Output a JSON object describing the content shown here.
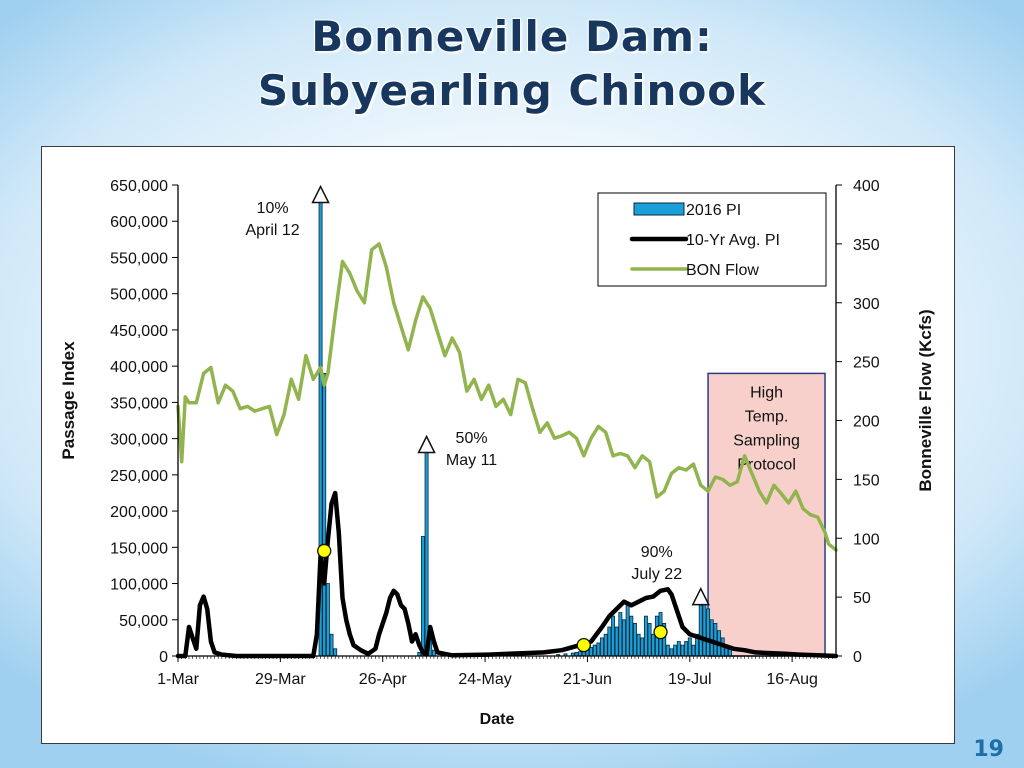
{
  "title": {
    "line1": "Bonneville Dam:",
    "line2": "Subyearling Chinook"
  },
  "page_number": "19",
  "colors": {
    "bars": "#1a9fd9",
    "avg": "#000000",
    "flow": "#92b44e",
    "shade": "#f7d0cc",
    "shade_border": "#2c3b86",
    "marker": "#ffff00",
    "title": "#17375e"
  },
  "chart_data": {
    "type": "bar+line",
    "xlabel": "Date",
    "ylabel": "Passage Index",
    "y2label": "Bonneville  Flow (Kcfs)",
    "xlim": [
      0,
      180
    ],
    "ylim": [
      0,
      650000
    ],
    "y2lim": [
      0,
      400
    ],
    "x_ticks": [
      {
        "label": "1-Mar",
        "day": 0
      },
      {
        "label": "29-Mar",
        "day": 28
      },
      {
        "label": "26-Apr",
        "day": 56
      },
      {
        "label": "24-May",
        "day": 84
      },
      {
        "label": "21-Jun",
        "day": 112
      },
      {
        "label": "19-Jul",
        "day": 140
      },
      {
        "label": "16-Aug",
        "day": 168
      }
    ],
    "y_ticks": [
      "0",
      "50,000",
      "100,000",
      "150,000",
      "200,000",
      "250,000",
      "300,000",
      "350,000",
      "400,000",
      "450,000",
      "500,000",
      "550,000",
      "600,000",
      "650,000"
    ],
    "y_tick_values": [
      0,
      50000,
      100000,
      150000,
      200000,
      250000,
      300000,
      350000,
      400000,
      450000,
      500000,
      550000,
      600000,
      650000
    ],
    "y2_ticks": [
      "0",
      "50",
      "100",
      "150",
      "200",
      "250",
      "300",
      "350",
      "400"
    ],
    "y2_tick_values": [
      0,
      50,
      100,
      150,
      200,
      250,
      300,
      350,
      400
    ],
    "legend": [
      {
        "label": "2016 PI",
        "kind": "bar"
      },
      {
        "label": "10-Yr Avg. PI",
        "kind": "avg"
      },
      {
        "label": "BON Flow",
        "kind": "flow"
      }
    ],
    "series": [
      {
        "name": "2016 PI",
        "kind": "bar",
        "points": [
          {
            "day": 39,
            "value": 630000
          },
          {
            "day": 40,
            "value": 390000
          },
          {
            "day": 41,
            "value": 100000
          },
          {
            "day": 42,
            "value": 30000
          },
          {
            "day": 43,
            "value": 10000
          },
          {
            "day": 66,
            "value": 5000
          },
          {
            "day": 67,
            "value": 165000
          },
          {
            "day": 68,
            "value": 285000
          },
          {
            "day": 69,
            "value": 40000
          },
          {
            "day": 70,
            "value": 8000
          },
          {
            "day": 104,
            "value": 2000
          },
          {
            "day": 106,
            "value": 3000
          },
          {
            "day": 108,
            "value": 4000
          },
          {
            "day": 109,
            "value": 5000
          },
          {
            "day": 110,
            "value": 6000
          },
          {
            "day": 111,
            "value": 8000
          },
          {
            "day": 112,
            "value": 10000
          },
          {
            "day": 113,
            "value": 12000
          },
          {
            "day": 114,
            "value": 15000
          },
          {
            "day": 115,
            "value": 18000
          },
          {
            "day": 116,
            "value": 25000
          },
          {
            "day": 117,
            "value": 30000
          },
          {
            "day": 118,
            "value": 40000
          },
          {
            "day": 119,
            "value": 55000
          },
          {
            "day": 120,
            "value": 40000
          },
          {
            "day": 121,
            "value": 60000
          },
          {
            "day": 122,
            "value": 50000
          },
          {
            "day": 123,
            "value": 70000
          },
          {
            "day": 124,
            "value": 55000
          },
          {
            "day": 125,
            "value": 45000
          },
          {
            "day": 126,
            "value": 30000
          },
          {
            "day": 127,
            "value": 25000
          },
          {
            "day": 128,
            "value": 55000
          },
          {
            "day": 129,
            "value": 45000
          },
          {
            "day": 130,
            "value": 30000
          },
          {
            "day": 131,
            "value": 55000
          },
          {
            "day": 132,
            "value": 60000
          },
          {
            "day": 133,
            "value": 45000
          },
          {
            "day": 134,
            "value": 15000
          },
          {
            "day": 135,
            "value": 10000
          },
          {
            "day": 136,
            "value": 15000
          },
          {
            "day": 137,
            "value": 20000
          },
          {
            "day": 138,
            "value": 15000
          },
          {
            "day": 139,
            "value": 20000
          },
          {
            "day": 140,
            "value": 25000
          },
          {
            "day": 141,
            "value": 15000
          },
          {
            "day": 142,
            "value": 30000
          },
          {
            "day": 143,
            "value": 70000
          },
          {
            "day": 144,
            "value": 75000
          },
          {
            "day": 145,
            "value": 65000
          },
          {
            "day": 146,
            "value": 50000
          },
          {
            "day": 147,
            "value": 45000
          },
          {
            "day": 148,
            "value": 35000
          },
          {
            "day": 149,
            "value": 25000
          },
          {
            "day": 150,
            "value": 15000
          },
          {
            "day": 151,
            "value": 10000
          }
        ]
      },
      {
        "name": "10-Yr Avg. PI",
        "kind": "line",
        "points": [
          [
            0,
            0
          ],
          [
            2,
            0
          ],
          [
            3,
            40000
          ],
          [
            4,
            25000
          ],
          [
            5,
            10000
          ],
          [
            6,
            70000
          ],
          [
            7,
            82000
          ],
          [
            8,
            65000
          ],
          [
            9,
            20000
          ],
          [
            10,
            5000
          ],
          [
            12,
            2000
          ],
          [
            16,
            0
          ],
          [
            30,
            0
          ],
          [
            37,
            0
          ],
          [
            38,
            30000
          ],
          [
            39,
            140000
          ],
          [
            40,
            100000
          ],
          [
            41,
            160000
          ],
          [
            42,
            210000
          ],
          [
            43,
            225000
          ],
          [
            44,
            170000
          ],
          [
            45,
            80000
          ],
          [
            46,
            50000
          ],
          [
            47,
            30000
          ],
          [
            48,
            15000
          ],
          [
            50,
            8000
          ],
          [
            52,
            3000
          ],
          [
            54,
            10000
          ],
          [
            55,
            30000
          ],
          [
            57,
            60000
          ],
          [
            58,
            80000
          ],
          [
            59,
            90000
          ],
          [
            60,
            85000
          ],
          [
            61,
            70000
          ],
          [
            62,
            65000
          ],
          [
            63,
            45000
          ],
          [
            64,
            20000
          ],
          [
            65,
            30000
          ],
          [
            66,
            15000
          ],
          [
            67,
            5000
          ],
          [
            68,
            2000
          ],
          [
            69,
            40000
          ],
          [
            70,
            20000
          ],
          [
            71,
            5000
          ],
          [
            75,
            1000
          ],
          [
            85,
            2000
          ],
          [
            95,
            4000
          ],
          [
            100,
            5000
          ],
          [
            105,
            8000
          ],
          [
            110,
            15000
          ],
          [
            113,
            20000
          ],
          [
            116,
            40000
          ],
          [
            118,
            55000
          ],
          [
            120,
            65000
          ],
          [
            122,
            75000
          ],
          [
            124,
            70000
          ],
          [
            126,
            75000
          ],
          [
            128,
            80000
          ],
          [
            130,
            82000
          ],
          [
            132,
            90000
          ],
          [
            134,
            92000
          ],
          [
            135,
            85000
          ],
          [
            136,
            70000
          ],
          [
            137,
            55000
          ],
          [
            138,
            40000
          ],
          [
            140,
            30000
          ],
          [
            143,
            25000
          ],
          [
            146,
            20000
          ],
          [
            149,
            15000
          ],
          [
            152,
            10000
          ],
          [
            155,
            8000
          ],
          [
            158,
            5000
          ],
          [
            162,
            4000
          ],
          [
            166,
            3000
          ],
          [
            170,
            2000
          ],
          [
            175,
            1000
          ],
          [
            180,
            0
          ]
        ]
      },
      {
        "name": "BON Flow",
        "kind": "line",
        "axis": "right",
        "points": [
          [
            0,
            212
          ],
          [
            1,
            165
          ],
          [
            2,
            220
          ],
          [
            3,
            215
          ],
          [
            5,
            215
          ],
          [
            7,
            240
          ],
          [
            9,
            245
          ],
          [
            11,
            215
          ],
          [
            13,
            230
          ],
          [
            15,
            225
          ],
          [
            17,
            210
          ],
          [
            19,
            212
          ],
          [
            21,
            208
          ],
          [
            23,
            210
          ],
          [
            25,
            212
          ],
          [
            27,
            188
          ],
          [
            29,
            205
          ],
          [
            31,
            235
          ],
          [
            33,
            218
          ],
          [
            35,
            255
          ],
          [
            37,
            235
          ],
          [
            39,
            245
          ],
          [
            40,
            230
          ],
          [
            41,
            240
          ],
          [
            43,
            290
          ],
          [
            45,
            335
          ],
          [
            47,
            325
          ],
          [
            49,
            310
          ],
          [
            51,
            300
          ],
          [
            53,
            345
          ],
          [
            55,
            350
          ],
          [
            57,
            330
          ],
          [
            59,
            300
          ],
          [
            61,
            280
          ],
          [
            63,
            260
          ],
          [
            65,
            285
          ],
          [
            67,
            305
          ],
          [
            69,
            295
          ],
          [
            71,
            275
          ],
          [
            73,
            255
          ],
          [
            75,
            270
          ],
          [
            77,
            258
          ],
          [
            79,
            225
          ],
          [
            81,
            235
          ],
          [
            83,
            218
          ],
          [
            85,
            230
          ],
          [
            87,
            212
          ],
          [
            89,
            218
          ],
          [
            91,
            205
          ],
          [
            93,
            235
          ],
          [
            95,
            232
          ],
          [
            97,
            210
          ],
          [
            99,
            190
          ],
          [
            101,
            198
          ],
          [
            103,
            185
          ],
          [
            105,
            187
          ],
          [
            107,
            190
          ],
          [
            109,
            185
          ],
          [
            111,
            170
          ],
          [
            113,
            185
          ],
          [
            115,
            195
          ],
          [
            117,
            190
          ],
          [
            119,
            170
          ],
          [
            121,
            172
          ],
          [
            123,
            170
          ],
          [
            125,
            160
          ],
          [
            127,
            170
          ],
          [
            129,
            165
          ],
          [
            131,
            135
          ],
          [
            133,
            140
          ],
          [
            135,
            155
          ],
          [
            137,
            160
          ],
          [
            139,
            158
          ],
          [
            141,
            163
          ],
          [
            143,
            145
          ],
          [
            145,
            140
          ],
          [
            147,
            152
          ],
          [
            149,
            150
          ],
          [
            151,
            145
          ],
          [
            153,
            148
          ],
          [
            155,
            170
          ],
          [
            157,
            155
          ],
          [
            159,
            140
          ],
          [
            161,
            130
          ],
          [
            163,
            145
          ],
          [
            165,
            138
          ],
          [
            167,
            130
          ],
          [
            169,
            140
          ],
          [
            171,
            125
          ],
          [
            173,
            120
          ],
          [
            175,
            118
          ],
          [
            177,
            105
          ],
          [
            178,
            95
          ],
          [
            180,
            90
          ]
        ]
      }
    ],
    "markers": [
      {
        "day": 40,
        "value": 145000,
        "note": "10% passage"
      },
      {
        "day": 111,
        "value": 15000,
        "note": "50% passage"
      },
      {
        "day": 132,
        "value": 33000,
        "note": "90% passage"
      }
    ],
    "annotations": [
      {
        "line1": "10%",
        "line2": "April 12",
        "day": 39,
        "peak": 630000
      },
      {
        "line1": "50%",
        "line2": "May 11",
        "day": 68,
        "peak": 285000
      },
      {
        "line1": "90%",
        "line2": "July 22",
        "day": 143,
        "peak": 75000
      }
    ],
    "shaded_region": {
      "start_day": 145,
      "end_day": 177,
      "top_flow": 240,
      "label": [
        "High",
        "Temp.",
        "Sampling",
        "Protocol"
      ]
    }
  }
}
